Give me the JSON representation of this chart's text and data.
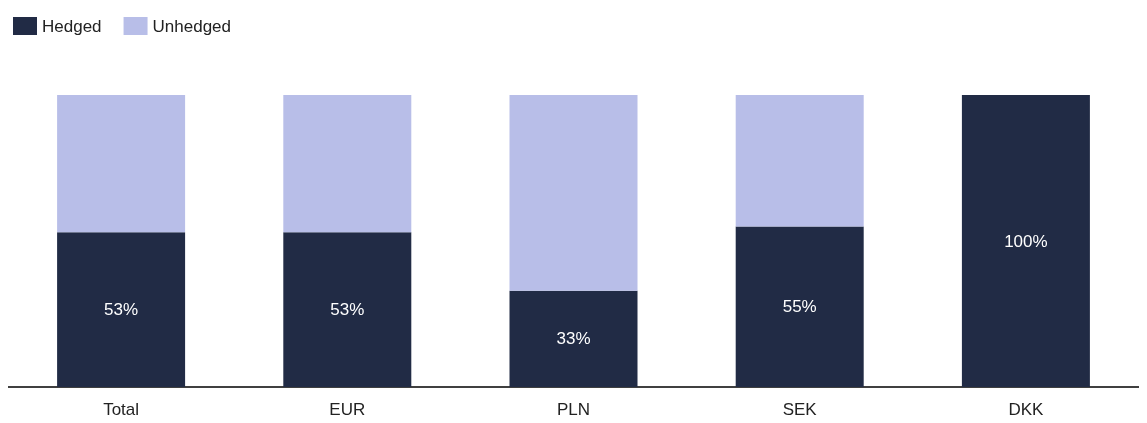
{
  "chart_data": {
    "type": "bar",
    "stacked": true,
    "categories": [
      "Total",
      "EUR",
      "PLN",
      "SEK",
      "DKK"
    ],
    "series": [
      {
        "name": "Hedged",
        "color": "#212b45",
        "values": [
          53,
          53,
          33,
          55,
          100
        ],
        "value_labels": [
          "53%",
          "53%",
          "33%",
          "55%",
          "100%"
        ]
      },
      {
        "name": "Unhedged",
        "color": "#b8bee8",
        "values": [
          47,
          47,
          67,
          45,
          0
        ]
      }
    ],
    "ylim": [
      0,
      100
    ],
    "tick_labels": "x",
    "legend": "top left"
  }
}
